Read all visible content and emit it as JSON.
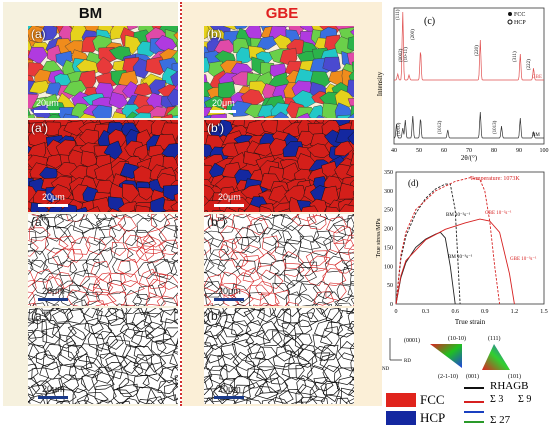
{
  "headers": {
    "left": "BM",
    "right": "GBE"
  },
  "panels": {
    "a": "(a)",
    "b": "(b)",
    "a2": "(a')",
    "b2": "(b')",
    "a3": "(a\")",
    "b3": "(b\")",
    "a4": "(a\"')",
    "b4": "(b\"')",
    "scale": "20μm"
  },
  "xrd": {
    "label": "(c)",
    "legend": [
      "FCC",
      "HCP"
    ],
    "peaks_fcc": [
      "(111)",
      "(200)",
      "(220)",
      "(311)",
      "(222)"
    ],
    "peaks_hcp": [
      "(0002)",
      "(10-11)",
      "(1010)",
      "(1012)",
      "(1013)"
    ],
    "curve_labels": [
      "GBE",
      "BM"
    ],
    "ylabel": "Intensity",
    "xlabel": "2θ/(°)",
    "xticks": [
      "40",
      "50",
      "60",
      "70",
      "80",
      "90",
      "100"
    ]
  },
  "chart_data": {
    "type": "line",
    "title": "(d)",
    "annotation": "Temperature: 1073K",
    "xlabel": "True strain",
    "ylabel": "True stress/MPa",
    "xlim": [
      0,
      1.5
    ],
    "ylim": [
      0,
      350
    ],
    "xticks": [
      "0",
      "0.3",
      "0.6",
      "0.9",
      "1.2",
      "1.5"
    ],
    "yticks": [
      "0",
      "50",
      "100",
      "150",
      "200",
      "250",
      "300",
      "350"
    ],
    "series": [
      {
        "name": "BM 10⁻²s⁻¹",
        "color": "#222222",
        "dash": true,
        "x": [
          0,
          0.05,
          0.1,
          0.2,
          0.3,
          0.4,
          0.5,
          0.55,
          0.6,
          0.62,
          0.65
        ],
        "y": [
          0,
          120,
          180,
          240,
          280,
          305,
          318,
          318,
          250,
          150,
          0
        ]
      },
      {
        "name": "GBE 10⁻²s⁻¹",
        "color": "#d62020",
        "dash": true,
        "x": [
          0,
          0.05,
          0.1,
          0.2,
          0.4,
          0.6,
          0.75,
          0.85,
          0.9,
          0.95,
          1.0,
          1.05
        ],
        "y": [
          0,
          130,
          190,
          250,
          300,
          325,
          335,
          330,
          300,
          220,
          100,
          0
        ]
      },
      {
        "name": "BM 10⁻³s⁻¹",
        "color": "#222222",
        "dash": false,
        "x": [
          0,
          0.05,
          0.1,
          0.2,
          0.3,
          0.4,
          0.45,
          0.5,
          0.55,
          0.6
        ],
        "y": [
          0,
          70,
          110,
          150,
          172,
          185,
          190,
          175,
          100,
          0
        ]
      },
      {
        "name": "GBE 10⁻³s⁻¹",
        "color": "#d62020",
        "dash": false,
        "x": [
          0,
          0.05,
          0.1,
          0.3,
          0.5,
          0.7,
          0.85,
          0.95,
          1.05,
          1.15,
          1.2
        ],
        "y": [
          0,
          75,
          115,
          170,
          198,
          215,
          225,
          220,
          190,
          80,
          0
        ]
      }
    ]
  },
  "ipf": {
    "hcp_labels": [
      "(0001)",
      "(10-10)",
      "(2-1-10)"
    ],
    "fcc_labels": [
      "(111)",
      "(001)",
      "(101)"
    ],
    "axes": [
      "RD",
      "ND"
    ]
  },
  "legend": {
    "fcc": "FCC",
    "hcp": "HCP",
    "rhagb": "RHAGB",
    "s3": "Σ 3",
    "s9": "Σ 9",
    "s27": "Σ 27",
    "colors": {
      "fcc": "#e0241c",
      "hcp": "#1428a0",
      "rhagb": "#111111",
      "s3": "#d62020",
      "s9": "#1a40c0",
      "s27": "#2a9a2a"
    }
  }
}
